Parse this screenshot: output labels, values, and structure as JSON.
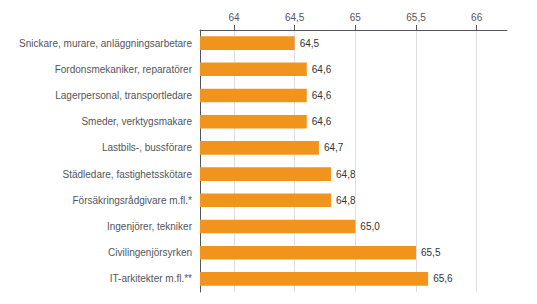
{
  "chart_data": {
    "type": "bar",
    "orientation": "horizontal",
    "categories": [
      "IT-arkitekter m.fl.**",
      "Civilingenjörsyrken",
      "Ingenjörer, tekniker",
      "Försäkringsrådgivare m.fl.*",
      "Städledare, fastighetsskötare",
      "Lastbils-, bussförare",
      "Smeder, verktygsmakare",
      "Lagerpersonal, transportledare",
      "Fordonsmekaniker, reparatörer",
      "Snickare, murare, anläggningsarbetare"
    ],
    "values": [
      65.6,
      65.5,
      65.0,
      64.8,
      64.8,
      64.7,
      64.6,
      64.6,
      64.6,
      64.5
    ],
    "value_labels": [
      "65,6",
      "65,5",
      "65,0",
      "64,8",
      "64,8",
      "64,7",
      "64,6",
      "64,6",
      "64,6",
      "64,5"
    ],
    "data_labels": true,
    "color": "#f0941e",
    "xlim": [
      63.72,
      66.25
    ],
    "xticks": [
      64,
      {
        "value": 64.5,
        "label": "64,5"
      },
      65,
      {
        "value": 65.5,
        "label": "65,5"
      },
      66
    ],
    "grid": true
  }
}
